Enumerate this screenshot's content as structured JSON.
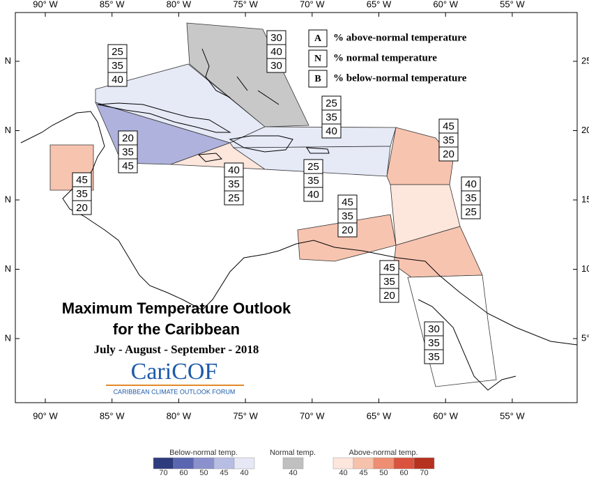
{
  "title": {
    "line1": "Maximum Temperature Outlook",
    "line2": "for the Caribbean",
    "period": "July - August - September - 2018"
  },
  "logo": {
    "name": "CariCOF",
    "tagline": "CARIBBEAN CLIMATE OUTLOOK FORUM"
  },
  "axes": {
    "longitudes": [
      "90° W",
      "85° W",
      "80° W",
      "75° W",
      "70° W",
      "65° W",
      "60° W",
      "55° W"
    ],
    "left_latitudes": [
      "N",
      "N",
      "N",
      "N",
      "N"
    ],
    "right_latitudes": [
      "25",
      "20",
      "15",
      "10",
      "5°"
    ]
  },
  "key": [
    {
      "letter": "A",
      "text": "% above-normal temperature"
    },
    {
      "letter": "N",
      "text": "% normal temperature"
    },
    {
      "letter": "B",
      "text": "% below-normal temperature"
    }
  ],
  "regions": [
    {
      "values": [
        30,
        40,
        30
      ],
      "color": "#c8c8c8"
    },
    {
      "values": [
        25,
        35,
        40
      ],
      "color": "#e6eaf7"
    },
    {
      "values": [
        20,
        35,
        45
      ],
      "color": "#aeb2dc"
    },
    {
      "values": [
        40,
        35,
        25
      ],
      "color": "#fde6dc"
    },
    {
      "values": [
        25,
        35,
        40
      ],
      "color": "#e6eaf7"
    },
    {
      "values": [
        25,
        35,
        40
      ],
      "color": "#e6eaf7"
    },
    {
      "values": [
        45,
        35,
        20
      ],
      "color": "#f7c4b0"
    },
    {
      "values": [
        45,
        35,
        20
      ],
      "color": "#f7c4b0"
    },
    {
      "values": [
        40,
        35,
        25
      ],
      "color": "#fde6dc"
    },
    {
      "values": [
        45,
        35,
        20
      ],
      "color": "#f7c4b0"
    },
    {
      "values": [
        45,
        35,
        20
      ],
      "color": "#f7c4b0"
    },
    {
      "values": [
        30,
        35,
        35
      ],
      "color": "#ffffff"
    }
  ],
  "legend": {
    "below": {
      "title": "Below-normal temp.",
      "labels": [
        70,
        60,
        50,
        45,
        40
      ],
      "colors": [
        "#2e3b7c",
        "#5a66b0",
        "#8b91cc",
        "#b8bde4",
        "#e6e8f6"
      ]
    },
    "normal": {
      "title": "Normal temp.",
      "labels": [
        40
      ],
      "colors": [
        "#c0c0c0"
      ]
    },
    "above": {
      "title": "Above-normal temp.",
      "labels": [
        40,
        45,
        50,
        60,
        70
      ],
      "colors": [
        "#fde6dc",
        "#f7c2ac",
        "#ee8e72",
        "#d9533e",
        "#b5321f"
      ]
    }
  }
}
